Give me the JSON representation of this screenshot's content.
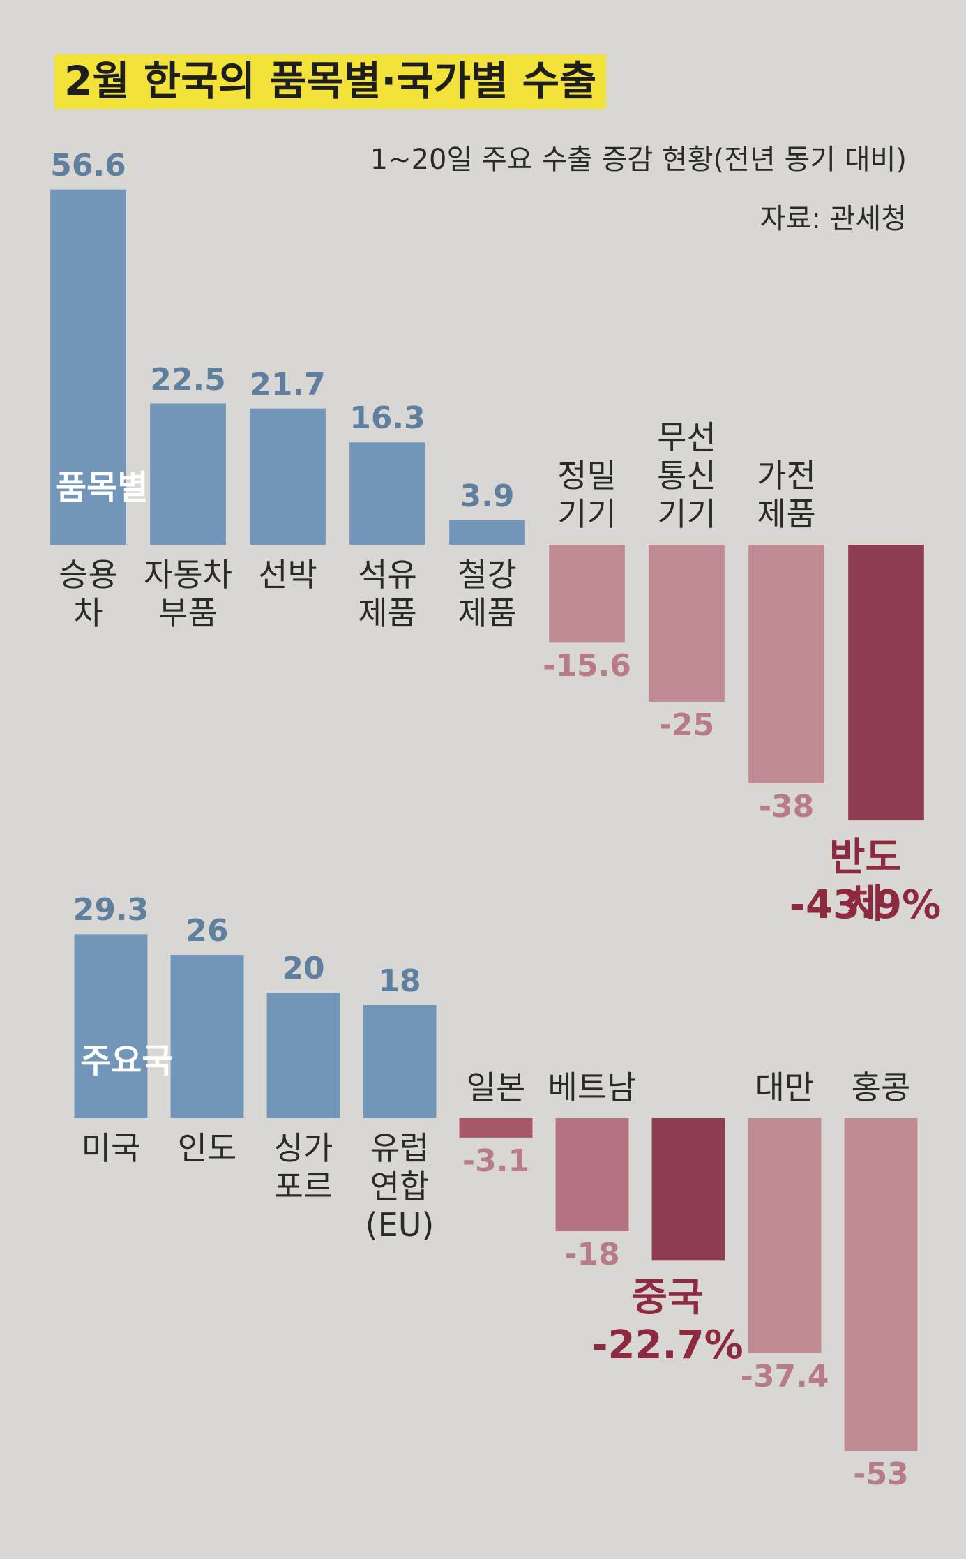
{
  "header": {
    "title": "2월 한국의 품목별·국가별 수출",
    "subtitle": "1~20일 주요 수출 증감 현황(전년 동기 대비)",
    "source": "자료: 관세청"
  },
  "chart_data": [
    {
      "type": "bar",
      "label": "품목별",
      "categories": [
        "승용\n차",
        "자동차\n부품",
        "선박",
        "석유\n제품",
        "철강\n제품",
        "정밀\n기기",
        "무선\n통신\n기기",
        "가전\n제품",
        "반도체"
      ],
      "values": [
        56.6,
        22.5,
        21.7,
        16.3,
        3.9,
        -15.6,
        -25,
        -38,
        -43.9
      ],
      "value_labels": [
        "56.6",
        "22.5",
        "21.7",
        "16.3",
        "3.9",
        "-15.6",
        "-25",
        "-38",
        "-43.9%"
      ],
      "colors": [
        "#7196ba",
        "#7196ba",
        "#7196ba",
        "#7196ba",
        "#7196ba",
        "#c08a93",
        "#c08a93",
        "#c08a93",
        "#8e3c4f"
      ],
      "highlight": [
        false,
        false,
        false,
        false,
        false,
        false,
        false,
        false,
        true
      ],
      "ylim": [
        -50,
        60
      ]
    },
    {
      "type": "bar",
      "label": "주요국",
      "categories": [
        "미국",
        "인도",
        "싱가\n포르",
        "유럽\n연합\n(EU)",
        "일본",
        "베트남",
        "중국",
        "대만",
        "홍콩"
      ],
      "values": [
        29.3,
        26,
        20,
        18,
        -3.1,
        -18,
        -22.7,
        -37.4,
        -53
      ],
      "value_labels": [
        "29.3",
        "26",
        "20",
        "18",
        "-3.1",
        "-18",
        "-22.7%",
        "-37.4",
        "-53"
      ],
      "colors": [
        "#7196ba",
        "#7196ba",
        "#7196ba",
        "#7196ba",
        "#a85868",
        "#b47380",
        "#8e3c4f",
        "#c08a93",
        "#c08a93"
      ],
      "highlight": [
        false,
        false,
        false,
        false,
        false,
        false,
        true,
        false,
        false
      ],
      "ylim": [
        -55,
        35
      ]
    }
  ]
}
